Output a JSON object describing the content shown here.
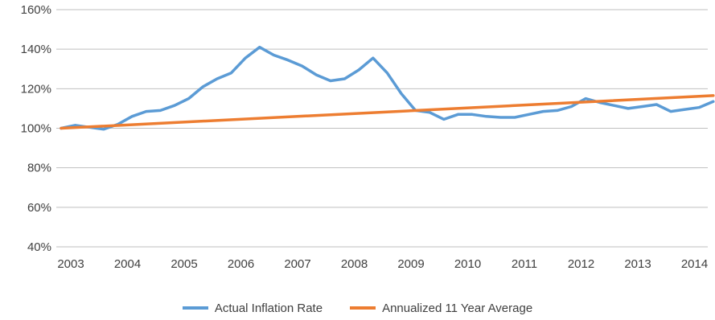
{
  "chart_data": {
    "type": "line",
    "title": "",
    "xlabel": "",
    "ylabel": "",
    "ylim": [
      40,
      160
    ],
    "xlim": [
      2003,
      2014.6
    ],
    "y_ticks": [
      "40%",
      "60%",
      "80%",
      "100%",
      "120%",
      "140%",
      "160%"
    ],
    "x_ticks": [
      "2003",
      "2004",
      "2005",
      "2006",
      "2007",
      "2008",
      "2009",
      "2010",
      "2011",
      "2012",
      "2013",
      "2014"
    ],
    "grid": "horizontal",
    "legend_position": "bottom",
    "series": [
      {
        "name": "Actual Inflation Rate",
        "color": "#5B9BD5",
        "x": [
          2003.0,
          2003.25,
          2003.5,
          2003.75,
          2004.0,
          2004.25,
          2004.5,
          2004.75,
          2005.0,
          2005.25,
          2005.5,
          2005.75,
          2006.0,
          2006.25,
          2006.5,
          2006.75,
          2007.0,
          2007.25,
          2007.5,
          2007.75,
          2008.0,
          2008.25,
          2008.5,
          2008.75,
          2009.0,
          2009.25,
          2009.5,
          2009.75,
          2010.0,
          2010.25,
          2010.5,
          2010.75,
          2011.0,
          2011.25,
          2011.5,
          2011.75,
          2012.0,
          2012.25,
          2012.5,
          2012.75,
          2013.0,
          2013.25,
          2013.5,
          2013.75,
          2014.0,
          2014.25,
          2014.5
        ],
        "values": [
          100,
          101.5,
          100.5,
          99.5,
          102,
          106,
          108.5,
          109,
          111.5,
          115,
          121,
          125,
          128,
          135.5,
          141,
          137,
          134.5,
          131.5,
          127,
          124,
          125,
          129.5,
          135.5,
          128,
          117.5,
          109,
          108,
          104.5,
          107,
          107,
          106,
          105.5,
          105.5,
          107,
          108.5,
          109,
          111,
          115,
          113,
          111.5,
          110,
          111,
          112,
          108.5,
          109.5,
          110.5,
          113.5
        ]
      },
      {
        "name": "Annualized 11 Year Average",
        "color": "#ED7D31",
        "x": [
          2003.0,
          2014.5
        ],
        "values": [
          100,
          116.5
        ]
      }
    ]
  }
}
